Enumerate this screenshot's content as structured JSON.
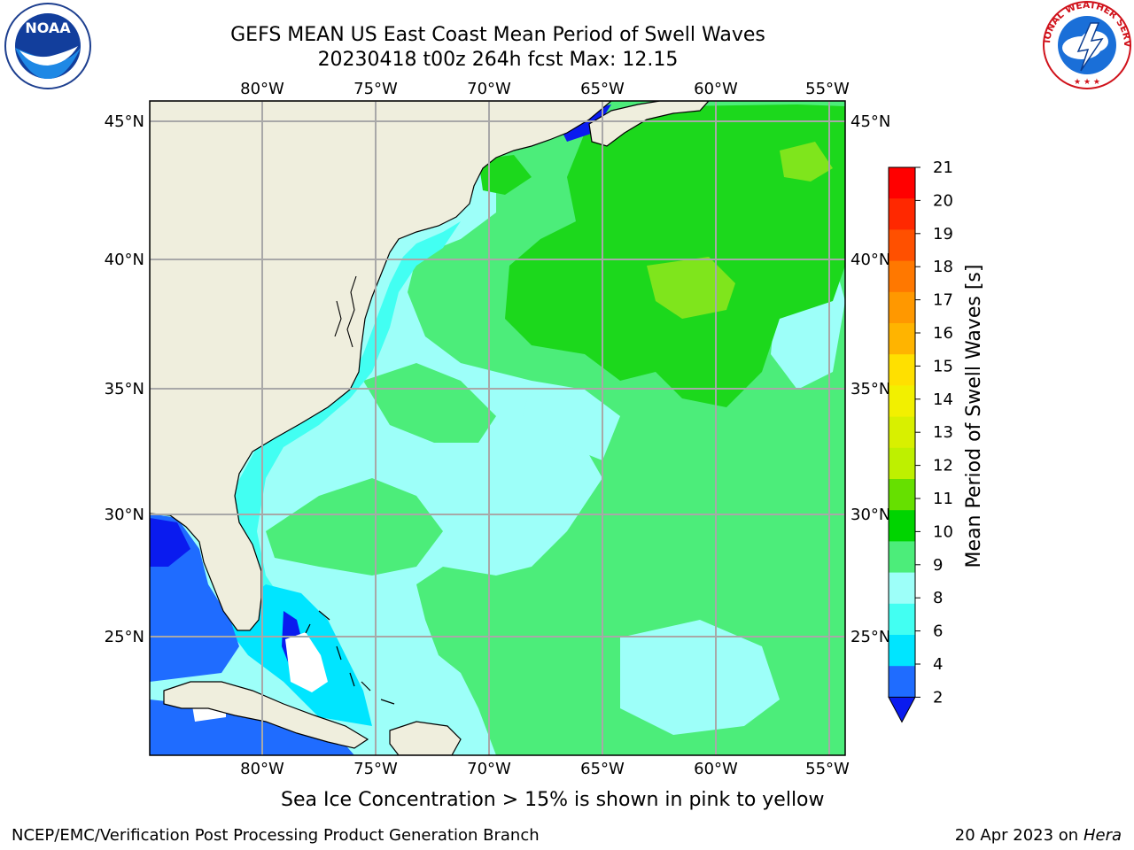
{
  "header": {
    "title_line1": "GEFS MEAN US East Coast Mean Period of Swell Waves",
    "title_line2": "20230418 t00z 264h fcst   Max: 12.15"
  },
  "logos": {
    "left": {
      "icon": "noaa-logo",
      "text": "NOAA"
    },
    "right": {
      "icon": "national-weather-service-logo",
      "text": "NATIONAL WEATHER SERVICE"
    }
  },
  "map": {
    "lon_labels": [
      "80°W",
      "75°W",
      "70°W",
      "65°W",
      "60°W",
      "55°W"
    ],
    "lat_labels": [
      "45°N",
      "40°N",
      "35°N",
      "30°N",
      "25°N"
    ],
    "land_color": "#efeedd",
    "ocean_colors": {
      "band_2_4": "#1f6cff",
      "band_4_6": "#00e5ff",
      "band_6_8": "#42fff2",
      "band_8_9": "#9dfff9",
      "band_9_10": "#4ced7a",
      "band_10_11": "#1cd81c",
      "band_11_12": "#7fe51c",
      "below_2": "#0a1bef"
    }
  },
  "colorbar": {
    "label": "Mean Period of Swell Waves [s]",
    "ticks": [
      "21",
      "20",
      "19",
      "18",
      "17",
      "16",
      "15",
      "14",
      "13",
      "12",
      "11",
      "10",
      "9",
      "8",
      "6",
      "4",
      "2"
    ],
    "colors": [
      "#ff0000",
      "#ff2800",
      "#ff5000",
      "#ff7800",
      "#ff9800",
      "#ffb400",
      "#ffe000",
      "#f2f000",
      "#d8f000",
      "#bef000",
      "#66e000",
      "#00d400",
      "#4ced7a",
      "#9dfff9",
      "#42fff2",
      "#00e5ff",
      "#1f6cff"
    ],
    "under_color": "#0a1bef"
  },
  "footer": {
    "note": "Sea Ice Concentration > 15% is shown in pink to yellow",
    "left": "NCEP/EMC/Verification Post Processing Product Generation Branch",
    "right_prefix": "20 Apr 2023 on ",
    "right_machine": "Hera"
  }
}
